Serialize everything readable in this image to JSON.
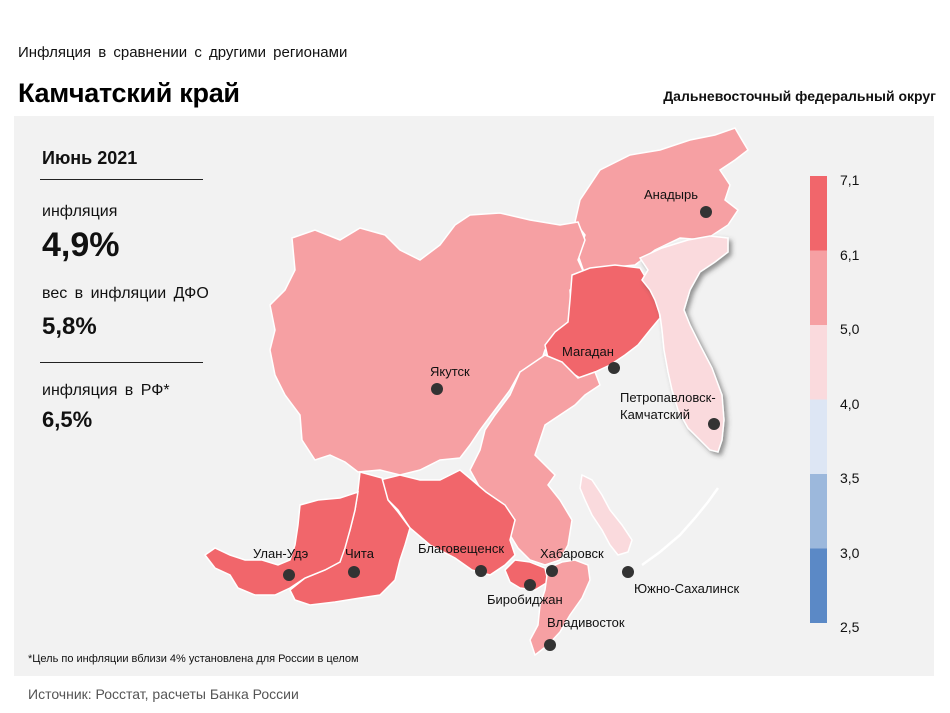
{
  "header": {
    "subtitle": "Инфляция  в сравнении  с другими  регионами",
    "title": "Камчатский край",
    "district": "Дальневосточный федеральный округ"
  },
  "side": {
    "period": "Июнь 2021",
    "inflation_label": "инфляция",
    "inflation_value": "4,9%",
    "weight_label": "вес в инфляции  ДФО",
    "weight_value": "5,8%",
    "rf_label": "инфляция  в РФ*",
    "rf_value": "6,5%"
  },
  "cities": {
    "anadyr": "Анадырь",
    "yakutsk": "Якутск",
    "magadan": "Магадан",
    "petropavlovsk_1": "Петропавловск-",
    "petropavlovsk_2": "Камчатский",
    "ulan_ude": "Улан-Удэ",
    "chita": "Чита",
    "blagoveshchensk": "Благовещенск",
    "khabarovsk": "Хабаровск",
    "birobidzhan": "Биробиджан",
    "yuzhno": "Южно-Сахалинск",
    "vladivostok": "Владивосток"
  },
  "legend": {
    "labels": [
      "7,1",
      "6,1",
      "5,0",
      "4,0",
      "3,5",
      "3,0",
      "2,5"
    ],
    "colors": [
      "#f1666b",
      "#f6a0a3",
      "#fadadd",
      "#dde6f4",
      "#9cb8dc",
      "#5b89c6"
    ]
  },
  "colors": {
    "high": "#f1666b",
    "mid": "#f6a0a3",
    "low": "#fadadd",
    "panel": "#f2f2f2"
  },
  "footnote": "*Цель по инфляции вблизи 4% установлена для России в целом",
  "source": "Источник: Росстат, расчеты Банка России"
}
